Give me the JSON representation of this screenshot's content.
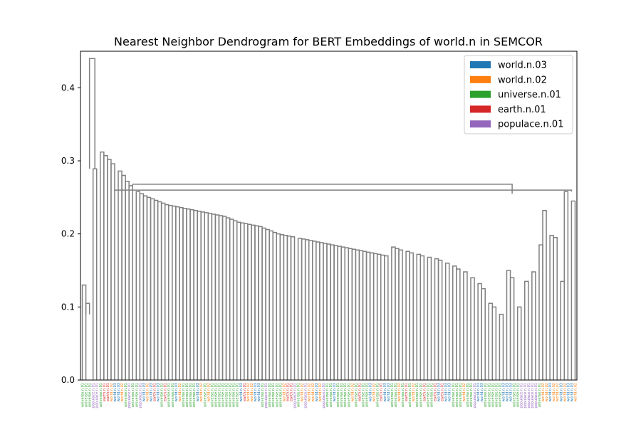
{
  "chart_data": {
    "type": "dendrogram",
    "title": "Nearest Neighbor Dendrogram for BERT Embeddings of world.n in SEMCOR",
    "xlabel": "",
    "ylabel": "",
    "ylim": [
      0,
      0.45
    ],
    "yticks": [
      0.0,
      0.1,
      0.2,
      0.3,
      0.4
    ],
    "ytick_labels": [
      "0.0",
      "0.1",
      "0.2",
      "0.3",
      "0.4"
    ],
    "grid": false,
    "legend_position": "top-right",
    "link_color": "#808080",
    "leaf_count": 138,
    "legend": [
      {
        "label": "world.n.03",
        "color": "#1f77b4"
      },
      {
        "label": "world.n.02",
        "color": "#ff7f0e"
      },
      {
        "label": "universe.n.01",
        "color": "#2ca02c"
      },
      {
        "label": "earth.n.01",
        "color": "#d62728"
      },
      {
        "label": "populace.n.01",
        "color": "#9467bd"
      }
    ],
    "leaf_classes": [
      2,
      2,
      2,
      4,
      4,
      2,
      3,
      3,
      1,
      0,
      0,
      1,
      2,
      4,
      2,
      2,
      4,
      0,
      1,
      0,
      3,
      0,
      2,
      3,
      2,
      2,
      0,
      1,
      2,
      2,
      2,
      2,
      0,
      1,
      2,
      1,
      2,
      2,
      2,
      2,
      2,
      2,
      2,
      2,
      0,
      3,
      1,
      1,
      0,
      0,
      2,
      4,
      2,
      2,
      2,
      2,
      1,
      3,
      3,
      4,
      2,
      1,
      4,
      1,
      1,
      0,
      1,
      4,
      2,
      2,
      0,
      2,
      2,
      2,
      2,
      1,
      2,
      3,
      2,
      2,
      0,
      1,
      2,
      3,
      0,
      0,
      2,
      2,
      1,
      2,
      3,
      2,
      1,
      2,
      2,
      3,
      2,
      2,
      3,
      0,
      3,
      0,
      0,
      2,
      2,
      2,
      1,
      2,
      2,
      4,
      0,
      0,
      2,
      2,
      2,
      2,
      2,
      0,
      0,
      0,
      2,
      2,
      4,
      4,
      4,
      4,
      4,
      2,
      1,
      1,
      0,
      1,
      1,
      0,
      1,
      0,
      0,
      1
    ],
    "leaf_labels": [
      "universe.n.01",
      "universe.n.01",
      "universe.n.01",
      "populace.n.01",
      "populace.n.01",
      "universe.n.01",
      "earth.n.01",
      "earth.n.01",
      "world.n.02",
      "world.n.03",
      "world.n.03",
      "world.n.02",
      "universe.n.01",
      "populace.n.01",
      "universe.n.01",
      "universe.n.01",
      "populace.n.01",
      "world.n.03",
      "world.n.02",
      "world.n.03",
      "earth.n.01",
      "world.n.03",
      "universe.n.01",
      "earth.n.01",
      "universe.n.01",
      "universe.n.01",
      "world.n.03",
      "world.n.02",
      "universe.n.01",
      "universe.n.01",
      "universe.n.01",
      "universe.n.01",
      "world.n.03",
      "world.n.02",
      "universe.n.01",
      "world.n.02",
      "universe.n.01",
      "universe.n.01",
      "universe.n.01",
      "universe.n.01",
      "universe.n.01",
      "universe.n.01",
      "universe.n.01",
      "universe.n.01",
      "world.n.03",
      "earth.n.01",
      "world.n.02",
      "world.n.02",
      "world.n.03",
      "world.n.03",
      "universe.n.01",
      "populace.n.01",
      "universe.n.01",
      "universe.n.01",
      "universe.n.01",
      "universe.n.01",
      "world.n.02",
      "earth.n.01",
      "earth.n.01",
      "populace.n.01",
      "universe.n.01",
      "world.n.02",
      "populace.n.01",
      "world.n.02",
      "world.n.02",
      "world.n.03",
      "world.n.02",
      "populace.n.01",
      "universe.n.01",
      "universe.n.01",
      "world.n.03",
      "universe.n.01",
      "universe.n.01",
      "universe.n.01",
      "universe.n.01",
      "world.n.02",
      "universe.n.01",
      "earth.n.01",
      "universe.n.01",
      "universe.n.01",
      "world.n.03",
      "world.n.02",
      "universe.n.01",
      "earth.n.01",
      "world.n.03",
      "world.n.03",
      "universe.n.01",
      "universe.n.01",
      "world.n.02",
      "universe.n.01",
      "earth.n.01",
      "universe.n.01",
      "world.n.02",
      "universe.n.01",
      "universe.n.01",
      "earth.n.01",
      "universe.n.01",
      "universe.n.01",
      "earth.n.01",
      "world.n.03",
      "earth.n.01",
      "world.n.03",
      "world.n.03",
      "universe.n.01",
      "universe.n.01",
      "universe.n.01",
      "world.n.02",
      "universe.n.01",
      "universe.n.01",
      "populace.n.01",
      "world.n.03",
      "world.n.03",
      "universe.n.01",
      "universe.n.01",
      "universe.n.01",
      "universe.n.01",
      "universe.n.01",
      "world.n.03",
      "world.n.03",
      "world.n.03",
      "universe.n.01",
      "universe.n.01",
      "populace.n.01",
      "populace.n.01",
      "populace.n.01",
      "populace.n.01",
      "populace.n.01",
      "universe.n.01",
      "world.n.02",
      "world.n.02",
      "world.n.03",
      "world.n.02",
      "world.n.02",
      "world.n.03",
      "world.n.02",
      "world.n.03",
      "world.n.03",
      "world.n.02"
    ],
    "links": [
      [
        0.5,
        1.5,
        0.13,
        0
      ],
      [
        1.5,
        2.5,
        0.105,
        0.09
      ],
      [
        3.5,
        4.5,
        0.289,
        0
      ],
      [
        2.5,
        4,
        0.44,
        0.289
      ],
      [
        5.5,
        6.5,
        0.312,
        0
      ],
      [
        6.5,
        7.5,
        0.307,
        0
      ],
      [
        7.5,
        8.5,
        0.302,
        0
      ],
      [
        8.5,
        9.5,
        0.296,
        0
      ],
      [
        10.5,
        11.5,
        0.286,
        0
      ],
      [
        11.5,
        12.5,
        0.28,
        0
      ],
      [
        12.5,
        13.5,
        0.272,
        0
      ],
      [
        13.5,
        14.5,
        0.266,
        0
      ],
      [
        15.5,
        16.5,
        0.258,
        0
      ],
      [
        16.5,
        17.5,
        0.255,
        0
      ],
      [
        17.5,
        18.5,
        0.252,
        0
      ],
      [
        18.5,
        19.5,
        0.25,
        0
      ],
      [
        19.5,
        20.5,
        0.248,
        0
      ],
      [
        20.5,
        21.5,
        0.246,
        0
      ],
      [
        21.5,
        22.5,
        0.244,
        0
      ],
      [
        22.5,
        23.5,
        0.242,
        0
      ],
      [
        23.5,
        24.5,
        0.24,
        0
      ],
      [
        24.5,
        25.5,
        0.239,
        0
      ],
      [
        25.5,
        26.5,
        0.238,
        0
      ],
      [
        26.5,
        27.5,
        0.237,
        0
      ],
      [
        27.5,
        28.5,
        0.236,
        0
      ],
      [
        28.5,
        29.5,
        0.235,
        0
      ],
      [
        29.5,
        30.5,
        0.234,
        0
      ],
      [
        30.5,
        31.5,
        0.233,
        0
      ],
      [
        31.5,
        32.5,
        0.232,
        0
      ],
      [
        32.5,
        33.5,
        0.231,
        0
      ],
      [
        33.5,
        34.5,
        0.23,
        0
      ],
      [
        34.5,
        35.5,
        0.229,
        0
      ],
      [
        35.5,
        36.5,
        0.228,
        0
      ],
      [
        36.5,
        37.5,
        0.227,
        0
      ],
      [
        37.5,
        38.5,
        0.226,
        0
      ],
      [
        38.5,
        39.5,
        0.225,
        0
      ],
      [
        39.5,
        40.5,
        0.224,
        0
      ],
      [
        40.5,
        41.5,
        0.222,
        0
      ],
      [
        41.5,
        42.5,
        0.22,
        0
      ],
      [
        42.5,
        43.5,
        0.218,
        0
      ],
      [
        43.5,
        44.5,
        0.216,
        0
      ],
      [
        44.5,
        45.5,
        0.215,
        0
      ],
      [
        45.5,
        46.5,
        0.214,
        0
      ],
      [
        46.5,
        47.5,
        0.213,
        0
      ],
      [
        47.5,
        48.5,
        0.212,
        0
      ],
      [
        48.5,
        49.5,
        0.211,
        0
      ],
      [
        49.5,
        50.5,
        0.21,
        0
      ],
      [
        50.5,
        51.5,
        0.208,
        0
      ],
      [
        51.5,
        52.5,
        0.206,
        0
      ],
      [
        52.5,
        53.5,
        0.204,
        0
      ],
      [
        53.5,
        54.5,
        0.202,
        0
      ],
      [
        54.5,
        55.5,
        0.2,
        0
      ],
      [
        55.5,
        56.5,
        0.199,
        0
      ],
      [
        56.5,
        57.5,
        0.198,
        0
      ],
      [
        57.5,
        58.5,
        0.197,
        0
      ],
      [
        58.5,
        59.5,
        0.196,
        0
      ],
      [
        60.5,
        61.5,
        0.194,
        0
      ],
      [
        61.5,
        62.5,
        0.193,
        0
      ],
      [
        62.5,
        63.5,
        0.192,
        0
      ],
      [
        63.5,
        64.5,
        0.191,
        0
      ],
      [
        64.5,
        65.5,
        0.19,
        0
      ],
      [
        65.5,
        66.5,
        0.189,
        0
      ],
      [
        66.5,
        67.5,
        0.188,
        0
      ],
      [
        67.5,
        68.5,
        0.187,
        0
      ],
      [
        68.5,
        69.5,
        0.186,
        0
      ],
      [
        69.5,
        70.5,
        0.185,
        0
      ],
      [
        70.5,
        71.5,
        0.184,
        0
      ],
      [
        71.5,
        72.5,
        0.183,
        0
      ],
      [
        72.5,
        73.5,
        0.182,
        0
      ],
      [
        73.5,
        74.5,
        0.181,
        0
      ],
      [
        74.5,
        75.5,
        0.18,
        0
      ],
      [
        75.5,
        76.5,
        0.179,
        0
      ],
      [
        76.5,
        77.5,
        0.178,
        0
      ],
      [
        77.5,
        78.5,
        0.177,
        0
      ],
      [
        78.5,
        79.5,
        0.176,
        0
      ],
      [
        79.5,
        80.5,
        0.175,
        0
      ],
      [
        80.5,
        81.5,
        0.174,
        0
      ],
      [
        81.5,
        82.5,
        0.173,
        0
      ],
      [
        82.5,
        83.5,
        0.172,
        0
      ],
      [
        83.5,
        84.5,
        0.171,
        0
      ],
      [
        84.5,
        85.5,
        0.17,
        0
      ],
      [
        86.5,
        87.5,
        0.182,
        0
      ],
      [
        87.5,
        88.5,
        0.18,
        0
      ],
      [
        88.5,
        89.5,
        0.178,
        0
      ],
      [
        90.5,
        91.5,
        0.176,
        0
      ],
      [
        91.5,
        92.5,
        0.174,
        0
      ],
      [
        93.5,
        94.5,
        0.172,
        0
      ],
      [
        94.5,
        95.5,
        0.17,
        0
      ],
      [
        96.5,
        97.5,
        0.168,
        0
      ],
      [
        98.5,
        99.5,
        0.166,
        0
      ],
      [
        99.5,
        100.5,
        0.164,
        0
      ],
      [
        101.5,
        102.5,
        0.16,
        0
      ],
      [
        103.5,
        104.5,
        0.156,
        0
      ],
      [
        104.5,
        105.5,
        0.152,
        0
      ],
      [
        106.5,
        107.5,
        0.148,
        0
      ],
      [
        108.5,
        109.5,
        0.14,
        0
      ],
      [
        110.5,
        111.5,
        0.132,
        0
      ],
      [
        111.5,
        112.5,
        0.125,
        0
      ],
      [
        113.5,
        114.5,
        0.105,
        0
      ],
      [
        114.5,
        115.5,
        0.1,
        0
      ],
      [
        116.5,
        117.5,
        0.09,
        0
      ],
      [
        118.5,
        119.5,
        0.15,
        0
      ],
      [
        119.5,
        120.5,
        0.14,
        0
      ],
      [
        121.5,
        122.5,
        0.1,
        0
      ],
      [
        123.5,
        124.5,
        0.135,
        0
      ],
      [
        125.5,
        126.5,
        0.148,
        0
      ],
      [
        127.5,
        128.5,
        0.185,
        0
      ],
      [
        128.5,
        129.5,
        0.232,
        0
      ],
      [
        130.5,
        131.5,
        0.198,
        0
      ],
      [
        131.5,
        132.5,
        0.195,
        0
      ],
      [
        133.5,
        134.5,
        0.135,
        0
      ],
      [
        134.5,
        135.5,
        0.258,
        0
      ],
      [
        136.5,
        137.5,
        0.245,
        0
      ],
      [
        9.5,
        136.5,
        0.26,
        0.258
      ],
      [
        14.5,
        120,
        0.268,
        0.255
      ]
    ]
  }
}
